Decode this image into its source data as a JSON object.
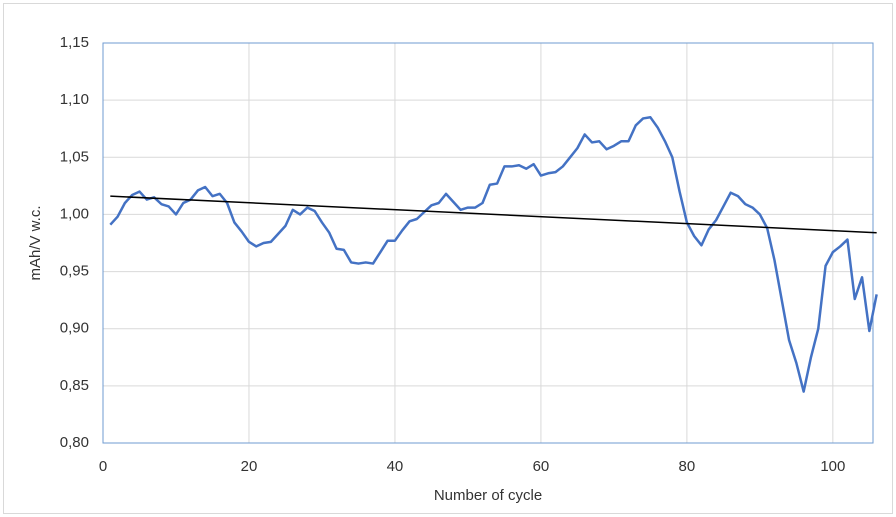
{
  "chart_data": {
    "type": "line",
    "x_label": "Number of cycle",
    "y_label": "mAh/V w.c.",
    "x": [
      1,
      2,
      3,
      4,
      5,
      6,
      7,
      8,
      9,
      10,
      11,
      12,
      13,
      14,
      15,
      16,
      17,
      18,
      19,
      20,
      21,
      22,
      23,
      24,
      25,
      26,
      27,
      28,
      29,
      30,
      31,
      32,
      33,
      34,
      35,
      36,
      37,
      38,
      39,
      40,
      41,
      42,
      43,
      44,
      45,
      46,
      47,
      48,
      49,
      50,
      51,
      52,
      53,
      54,
      55,
      56,
      57,
      58,
      59,
      60,
      61,
      62,
      63,
      64,
      65,
      66,
      67,
      68,
      69,
      70,
      71,
      72,
      73,
      74,
      75,
      76,
      77,
      78,
      79,
      80,
      81,
      82,
      83,
      84,
      85,
      86,
      87,
      88,
      89,
      90,
      91,
      92,
      93,
      94,
      95,
      96,
      97,
      98,
      99,
      100,
      101,
      102,
      103,
      104,
      105,
      106
    ],
    "series": [
      {
        "color": "#4472c4",
        "values": [
          0.991,
          0.998,
          1.01,
          1.017,
          1.02,
          1.013,
          1.015,
          1.009,
          1.007,
          1.0,
          1.01,
          1.013,
          1.021,
          1.024,
          1.016,
          1.018,
          1.01,
          0.993,
          0.985,
          0.976,
          0.972,
          0.975,
          0.976,
          0.983,
          0.99,
          1.004,
          1.0,
          1.006,
          1.003,
          0.993,
          0.984,
          0.97,
          0.969,
          0.958,
          0.957,
          0.958,
          0.957,
          0.967,
          0.977,
          0.977,
          0.986,
          0.994,
          0.996,
          1.002,
          1.008,
          1.01,
          1.018,
          1.011,
          1.004,
          1.006,
          1.006,
          1.01,
          1.026,
          1.027,
          1.042,
          1.042,
          1.043,
          1.04,
          1.044,
          1.034,
          1.036,
          1.037,
          1.042,
          1.05,
          1.058,
          1.07,
          1.063,
          1.064,
          1.057,
          1.06,
          1.064,
          1.064,
          1.078,
          1.084,
          1.085,
          1.076,
          1.064,
          1.05,
          1.02,
          0.993,
          0.981,
          0.973,
          0.987,
          0.995,
          1.007,
          1.019,
          1.016,
          1.009,
          1.006,
          1.0,
          0.988,
          0.96,
          0.925,
          0.89,
          0.87,
          0.845,
          0.875,
          0.9,
          0.955,
          0.967,
          0.972,
          0.978,
          0.926,
          0.945,
          0.898,
          0.93
        ]
      }
    ],
    "trend": {
      "color": "#000000",
      "x": [
        1,
        106
      ],
      "values": [
        1.016,
        0.984
      ]
    },
    "xlim": [
      0,
      105.5
    ],
    "xticks": [
      0,
      20,
      40,
      60,
      80,
      100
    ],
    "ylim": [
      0.8,
      1.15
    ],
    "yticks": [
      {
        "value": 0.8,
        "label": "0,80"
      },
      {
        "value": 0.85,
        "label": "0,85"
      },
      {
        "value": 0.9,
        "label": "0,90"
      },
      {
        "value": 0.95,
        "label": "0,95"
      },
      {
        "value": 1.0,
        "label": "1,00"
      },
      {
        "value": 1.05,
        "label": "1,05"
      },
      {
        "value": 1.1,
        "label": "1,10"
      },
      {
        "value": 1.15,
        "label": "1,15"
      }
    ],
    "grid": true
  }
}
